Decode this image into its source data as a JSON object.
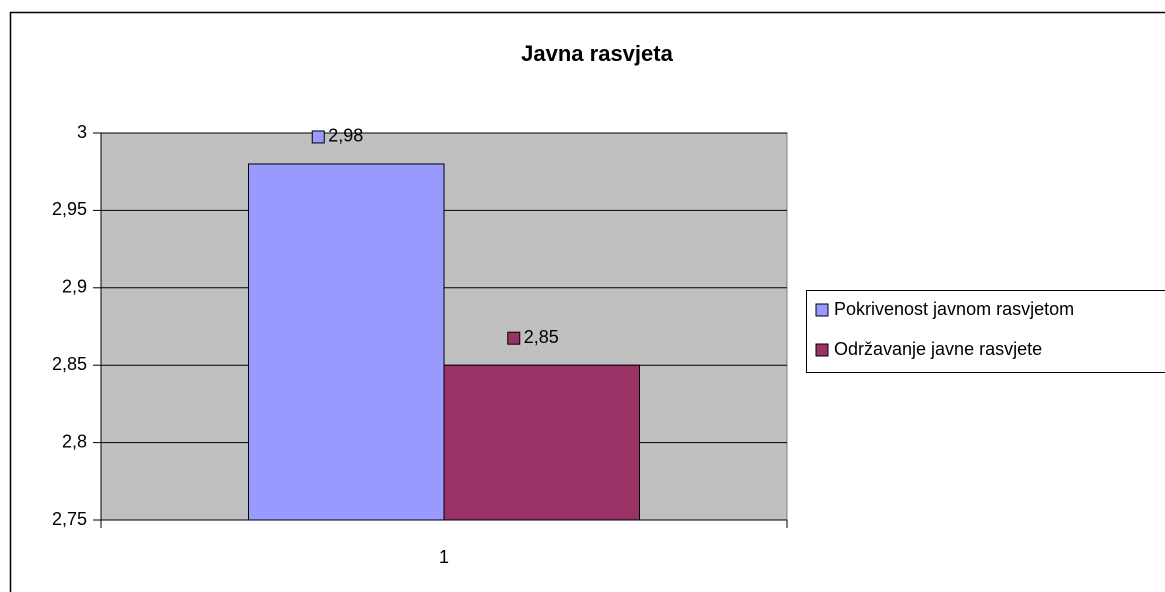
{
  "chart_data": {
    "type": "bar",
    "title": "Javna rasvjeta",
    "categories": [
      "1"
    ],
    "series": [
      {
        "name": "Pokrivenost javnom rasvjetom",
        "color": "#9999ff",
        "values": [
          2.98
        ],
        "value_labels": [
          "2,98"
        ]
      },
      {
        "name": "Održavanje javne rasvjete",
        "color": "#993366",
        "values": [
          2.85
        ],
        "value_labels": [
          "2,85"
        ]
      }
    ],
    "ylim": [
      2.75,
      3
    ],
    "yticks": [
      {
        "value": 2.75,
        "label": "2,75"
      },
      {
        "value": 2.8,
        "label": "2,8"
      },
      {
        "value": 2.85,
        "label": "2,85"
      },
      {
        "value": 2.9,
        "label": "2,9"
      },
      {
        "value": 2.95,
        "label": "2,95"
      },
      3
    ],
    "grid": true,
    "legend": "right",
    "plot_background": "#c0c0c0"
  }
}
